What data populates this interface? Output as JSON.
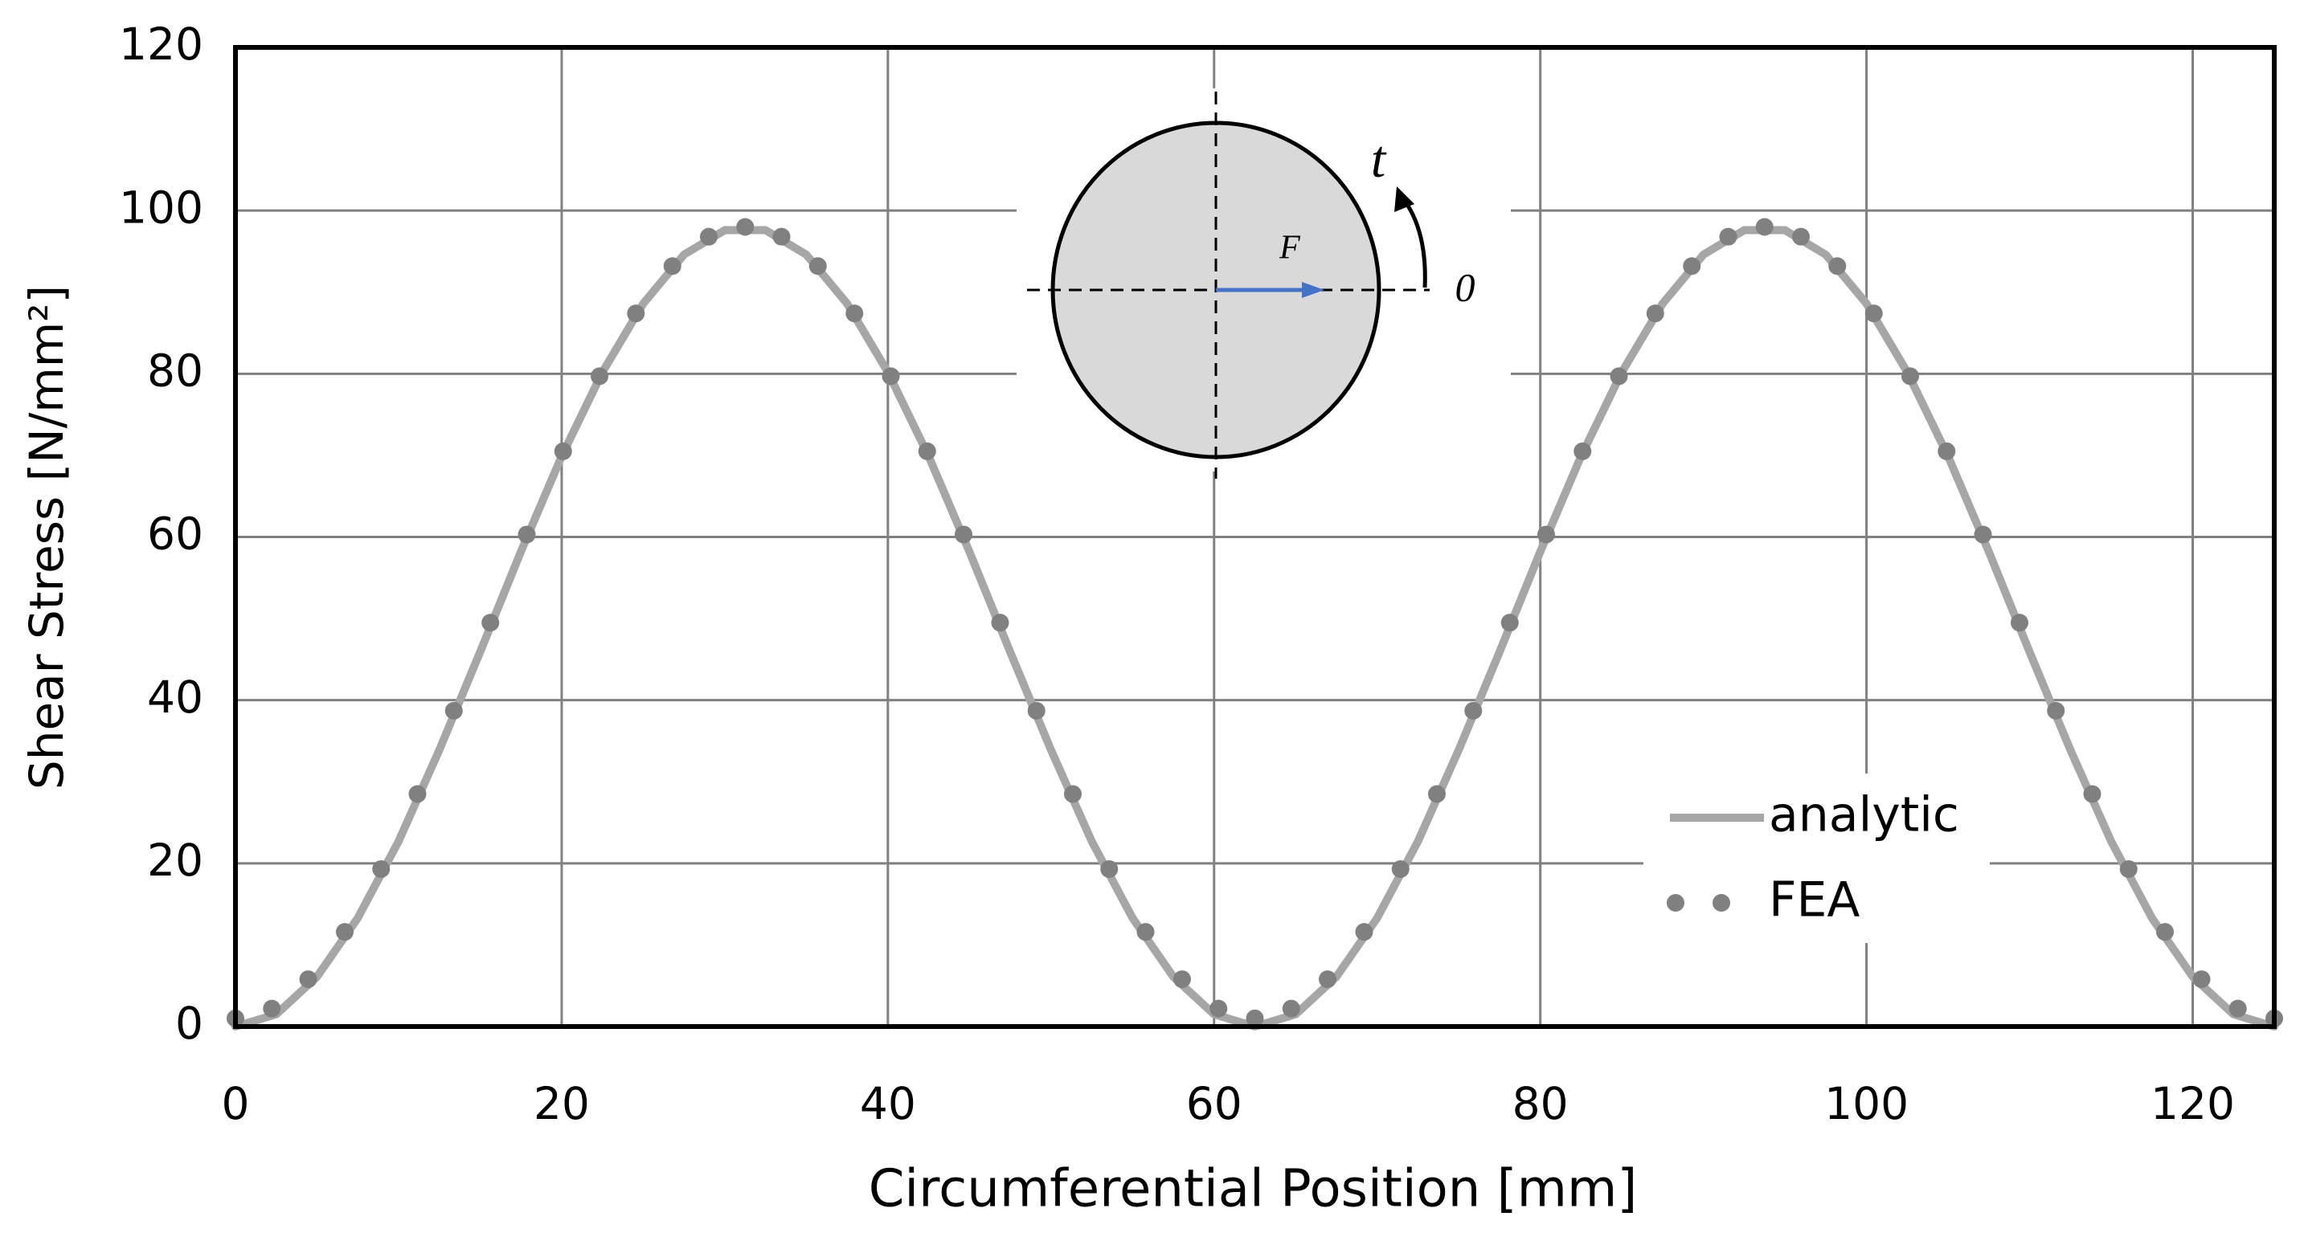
{
  "chart_data": {
    "type": "line",
    "xlabel": "Circumferential Position [mm]",
    "ylabel": "Shear Stress [N/mm²]",
    "xlim": [
      0,
      125
    ],
    "ylim": [
      0,
      120
    ],
    "xticks": [
      0,
      20,
      40,
      60,
      80,
      100,
      120
    ],
    "yticks": [
      0,
      20,
      40,
      60,
      80,
      100,
      120
    ],
    "grid": true,
    "legend": "lower right",
    "inset_labels": {
      "force": "F",
      "tangent": "t",
      "origin": "0"
    },
    "series": [
      {
        "name": "analytic",
        "color": "#a6a6a6",
        "style": "line",
        "x": [
          0,
          2.5,
          5,
          7.5,
          10,
          12.5,
          15,
          17.5,
          20,
          22.5,
          25,
          27.5,
          30,
          32.5,
          35,
          37.5,
          40,
          42.5,
          45,
          47.5,
          50,
          52.5,
          55,
          57.5,
          60,
          62.5,
          65,
          67.5,
          70,
          72.5,
          75,
          77.5,
          80,
          82.5,
          85,
          87.5,
          90,
          92.5,
          95,
          97.5,
          100,
          102.5,
          105,
          107.5,
          110,
          112.5,
          115,
          117.5,
          120,
          122.5,
          125
        ],
        "values": [
          0,
          1.5,
          6.1,
          13.3,
          22.7,
          33.9,
          45.9,
          58.2,
          69.9,
          80.2,
          88.6,
          94.6,
          97.6,
          97.6,
          94.6,
          88.6,
          80.2,
          69.9,
          58.2,
          45.9,
          33.9,
          22.7,
          13.3,
          6.1,
          1.5,
          0,
          1.5,
          6.1,
          13.3,
          22.7,
          33.9,
          45.9,
          58.2,
          69.9,
          80.2,
          88.6,
          94.6,
          97.6,
          97.6,
          94.6,
          88.6,
          80.2,
          69.9,
          58.2,
          45.9,
          33.9,
          22.7,
          13.3,
          6.1,
          1.5,
          0
        ]
      },
      {
        "name": "FEA",
        "color": "#808080",
        "style": "dots",
        "x": [
          0,
          2.23,
          4.46,
          6.7,
          8.93,
          11.16,
          13.39,
          15.63,
          17.86,
          20.09,
          22.32,
          24.55,
          26.79,
          29.02,
          31.25,
          33.48,
          35.71,
          37.95,
          40.18,
          42.41,
          44.64,
          46.88,
          49.11,
          51.34,
          53.57,
          55.8,
          58.04,
          60.27,
          62.5,
          64.73,
          66.96,
          69.2,
          71.43,
          73.66,
          75.89,
          78.13,
          80.36,
          82.59,
          84.82,
          87.05,
          89.29,
          91.52,
          93.75,
          95.98,
          98.21,
          100.45,
          102.68,
          104.91,
          107.14,
          109.38,
          111.61,
          113.84,
          116.07,
          118.3,
          120.54,
          122.77,
          125
        ],
        "values": [
          1.0,
          2.2,
          5.8,
          11.6,
          19.3,
          28.5,
          38.7,
          49.5,
          60.3,
          70.5,
          79.7,
          87.4,
          93.2,
          96.8,
          98.0,
          96.8,
          93.2,
          87.4,
          79.7,
          70.5,
          60.3,
          49.5,
          38.7,
          28.5,
          19.3,
          11.6,
          5.8,
          2.2,
          1.0,
          2.2,
          5.8,
          11.6,
          19.3,
          28.5,
          38.7,
          49.5,
          60.3,
          70.5,
          79.7,
          87.4,
          93.2,
          96.8,
          98.0,
          96.8,
          93.2,
          87.4,
          79.7,
          70.5,
          60.3,
          49.5,
          38.7,
          28.5,
          19.3,
          11.6,
          5.8,
          2.2,
          1.0
        ]
      }
    ]
  }
}
